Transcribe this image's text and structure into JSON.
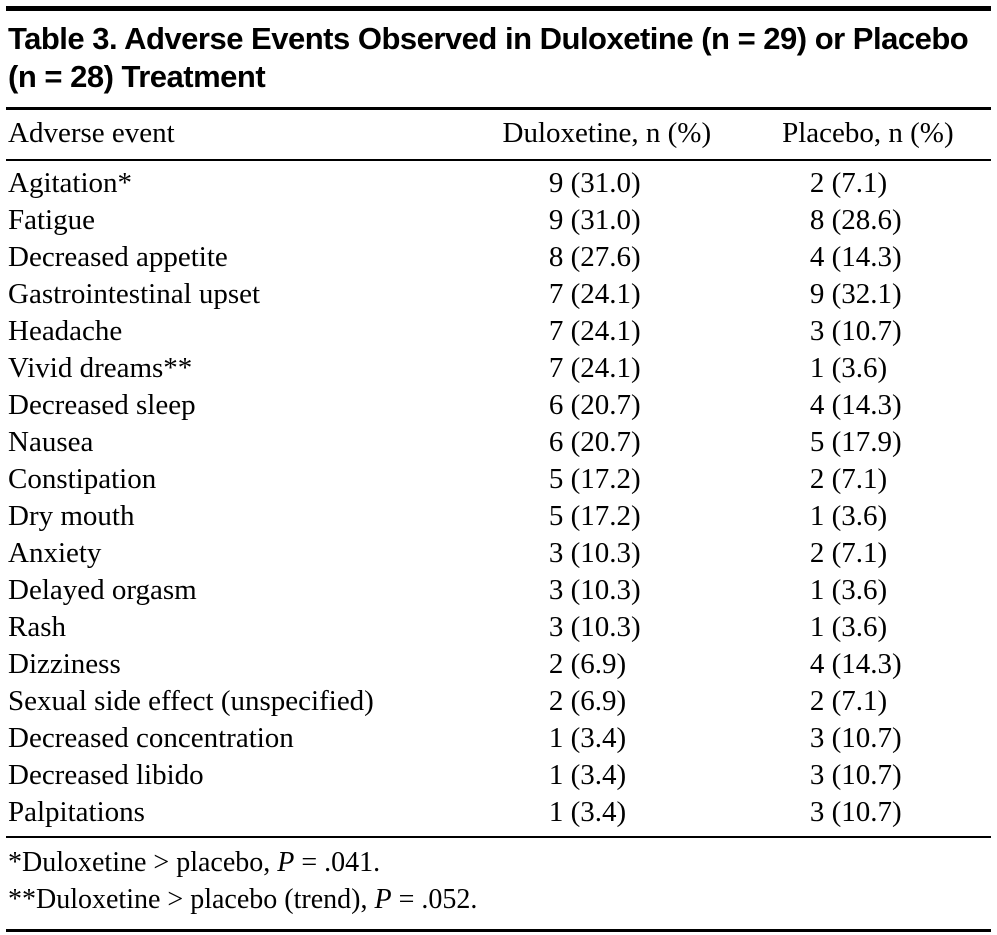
{
  "title": "Table 3. Adverse Events Observed in Duloxetine (n = 29) or Placebo (n = 28) Treatment",
  "table": {
    "columns": [
      "Adverse event",
      "Duloxetine, n (%)",
      "Placebo, n (%)"
    ],
    "rows": [
      [
        "Agitation*",
        "9 (31.0)",
        "2 (7.1)"
      ],
      [
        "Fatigue",
        "9 (31.0)",
        "8 (28.6)"
      ],
      [
        "Decreased appetite",
        "8 (27.6)",
        "4 (14.3)"
      ],
      [
        "Gastrointestinal upset",
        "7 (24.1)",
        "9 (32.1)"
      ],
      [
        "Headache",
        "7 (24.1)",
        "3 (10.7)"
      ],
      [
        "Vivid dreams**",
        "7 (24.1)",
        "1 (3.6)"
      ],
      [
        "Decreased sleep",
        "6 (20.7)",
        "4 (14.3)"
      ],
      [
        "Nausea",
        "6 (20.7)",
        "5 (17.9)"
      ],
      [
        "Constipation",
        "5 (17.2)",
        "2 (7.1)"
      ],
      [
        "Dry mouth",
        "5 (17.2)",
        "1 (3.6)"
      ],
      [
        "Anxiety",
        "3 (10.3)",
        "2 (7.1)"
      ],
      [
        "Delayed orgasm",
        "3 (10.3)",
        "1 (3.6)"
      ],
      [
        "Rash",
        "3 (10.3)",
        "1 (3.6)"
      ],
      [
        "Dizziness",
        "2 (6.9)",
        "4 (14.3)"
      ],
      [
        "Sexual side effect (unspecified)",
        "2 (6.9)",
        "2 (7.1)"
      ],
      [
        "Decreased concentration",
        "1 (3.4)",
        "3 (10.7)"
      ],
      [
        "Decreased libido",
        "1 (3.4)",
        "3 (10.7)"
      ],
      [
        "Palpitations",
        "1 (3.4)",
        "3 (10.7)"
      ]
    ]
  },
  "footnotes": [
    {
      "pre": "*Duloxetine > placebo, ",
      "italic": "P",
      "post": " = .041."
    },
    {
      "pre": "**Duloxetine > placebo (trend), ",
      "italic": "P",
      "post": " = .052."
    }
  ]
}
